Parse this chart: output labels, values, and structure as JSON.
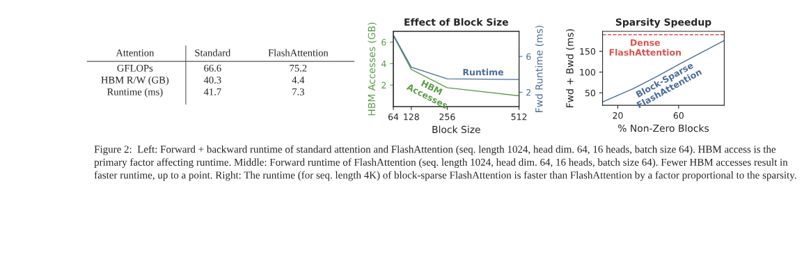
{
  "chart_data": [
    {
      "type": "other",
      "categories": [
        "Attention",
        "Standard",
        "FlashAttention"
      ],
      "y_categories": [
        "GFLOPs",
        "HBM R/W (GB)",
        "Runtime (ms)"
      ],
      "cell_labels": [
        [
          "66.6",
          "75.2"
        ],
        [
          "40.3",
          "4.4"
        ],
        [
          "41.7",
          "7.3"
        ]
      ],
      "annotations": [
        "Figure 2:  Left: Forward + backward runtime of standard attention and FlashAttention (seq. length 1024, head dim. 64, 16 heads, batch size 64). HBM access is the primary factor affecting runtime. Middle: Forward runtime of FlashAttention (seq. length 1024, head dim. 64, 16 heads, batch size 64). Fewer HBM accesses result in faster runtime, up to a point. Right: The runtime (for seq. length 4K) of block-sparse FlashAttention is faster than FlashAttention by a factor proportional to the sparsity."
      ]
    },
    {
      "type": "line",
      "title": "Effect of Block Size",
      "xlabel": "Block Size",
      "ylabel": "HBM Accesses (GB)",
      "y2label": "Fwd Runtime (ms)",
      "x": [
        64,
        128,
        256,
        512
      ],
      "xlim": [
        64,
        512
      ],
      "xticks": [
        64,
        128,
        256,
        512
      ],
      "ylim": [
        0,
        7
      ],
      "yticks": [
        2,
        4,
        6
      ],
      "y2lim": [
        0.4,
        8.8
      ],
      "y2ticks": [
        2,
        6
      ],
      "series": [
        {
          "name": "HBM\nAccesses",
          "color": "#5a9e4b",
          "values": [
            6.6,
            3.46,
            1.76,
            1.0
          ]
        },
        {
          "name": "Runtime",
          "color": "#4a6d99",
          "axis": "y2",
          "values": [
            8.4,
            4.8,
            3.5,
            3.42
          ]
        }
      ]
    },
    {
      "type": "line",
      "title": "Sparsity Speedup",
      "xlabel": "% Non-Zero Blocks",
      "ylabel": "Fwd + Bwd (ms)",
      "xlim": [
        10,
        90
      ],
      "xticks": [
        20,
        60
      ],
      "ylim": [
        20,
        198
      ],
      "yticks": [
        50,
        100,
        150
      ],
      "series": [
        {
          "name": "Block-Sparse\nFlashAttention",
          "color": "#4a6d99",
          "x": [
            10,
            20,
            30,
            45,
            60,
            75,
            90
          ],
          "values": [
            28,
            44,
            60,
            88,
            118,
            147,
            176
          ]
        }
      ],
      "ref_lines": [
        {
          "axis": "y",
          "value": 190,
          "label": "Dense\nFlashAttention",
          "color": "#d9534f",
          "line_style": "dashed"
        }
      ]
    }
  ]
}
